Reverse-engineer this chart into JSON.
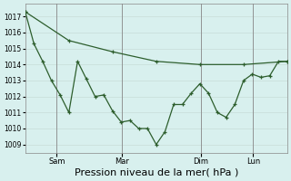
{
  "title": "Pression niveau de la mer( hPa )",
  "bg_color": "#d8f0ee",
  "grid_color": "#c8dcd8",
  "line_color": "#2d5e2d",
  "ylim": [
    1008.5,
    1017.8
  ],
  "yticks": [
    1009,
    1010,
    1011,
    1012,
    1013,
    1014,
    1015,
    1016,
    1017
  ],
  "x_tick_labels": [
    "Sam",
    "Mar",
    "Dim",
    "Lun"
  ],
  "x_tick_positions": [
    0.12,
    0.37,
    0.67,
    0.87
  ],
  "line1_x": [
    0,
    1,
    2,
    3,
    4,
    5,
    6,
    7,
    8,
    9,
    10,
    11,
    12,
    13,
    14,
    15,
    16,
    17,
    18,
    19,
    20,
    21,
    22,
    23,
    24,
    25,
    26,
    27,
    28,
    29,
    30
  ],
  "line1_y": [
    1017.3,
    1015.3,
    1014.2,
    1013.0,
    1012.1,
    1011.0,
    1014.2,
    1013.1,
    1012.0,
    1012.1,
    1011.1,
    1010.4,
    1010.5,
    1010.0,
    1010.0,
    1009.0,
    1009.8,
    1011.5,
    1011.5,
    1012.2,
    1012.8,
    1012.2,
    1011.0,
    1010.7,
    1011.5,
    1013.0,
    1013.4,
    1013.2,
    1013.3,
    1014.2,
    1014.2
  ],
  "line2_x": [
    0,
    5,
    10,
    15,
    20,
    25,
    30
  ],
  "line2_y": [
    1017.3,
    1015.5,
    1014.8,
    1014.2,
    1014.0,
    1014.0,
    1014.2
  ],
  "marker": "+",
  "markersize": 3,
  "linewidth": 0.9,
  "ylabel_fontsize": 5.5,
  "xlabel_fontsize": 8
}
